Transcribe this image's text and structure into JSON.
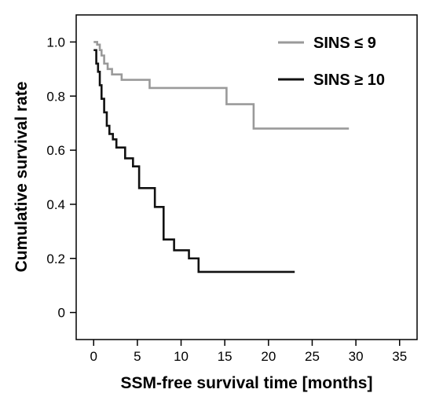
{
  "chart_data": {
    "type": "line",
    "subtype": "step",
    "title": "",
    "xlabel": "SSM-free survival time [months]",
    "ylabel": "Cumulative survival rate",
    "xlim": [
      -2,
      37
    ],
    "ylim": [
      -0.1,
      1.1
    ],
    "xticks": [
      0,
      5,
      10,
      15,
      20,
      25,
      30,
      35
    ],
    "yticks": [
      0,
      0.2,
      0.4,
      0.6,
      0.8,
      1.0
    ],
    "xtick_labels": [
      "0",
      "5",
      "10",
      "15",
      "20",
      "25",
      "30",
      "35"
    ],
    "ytick_labels": [
      "0",
      "0.2",
      "0.4",
      "0.6",
      "0.8",
      "1.0"
    ],
    "grid": false,
    "legend": {
      "position": "top-right"
    },
    "series": [
      {
        "name": "SINS ≤ 9",
        "color": "#9a9a9a",
        "x": [
          0,
          0.4,
          0.7,
          0.9,
          1.2,
          1.6,
          2.1,
          3.2,
          6.4,
          15.2,
          18.3,
          29.2
        ],
        "y": [
          1.0,
          0.99,
          0.97,
          0.95,
          0.92,
          0.9,
          0.88,
          0.86,
          0.83,
          0.77,
          0.68,
          0.68
        ]
      },
      {
        "name": "SINS ≥ 10",
        "color": "#111111",
        "x": [
          0,
          0.3,
          0.5,
          0.7,
          0.9,
          1.2,
          1.5,
          1.8,
          2.2,
          2.6,
          3.6,
          4.5,
          5.2,
          7.0,
          8.0,
          9.2,
          10.9,
          12.0,
          23.0
        ],
        "y": [
          0.97,
          0.92,
          0.89,
          0.84,
          0.79,
          0.74,
          0.69,
          0.66,
          0.64,
          0.61,
          0.57,
          0.54,
          0.46,
          0.39,
          0.27,
          0.23,
          0.2,
          0.15,
          0.15
        ]
      }
    ]
  }
}
